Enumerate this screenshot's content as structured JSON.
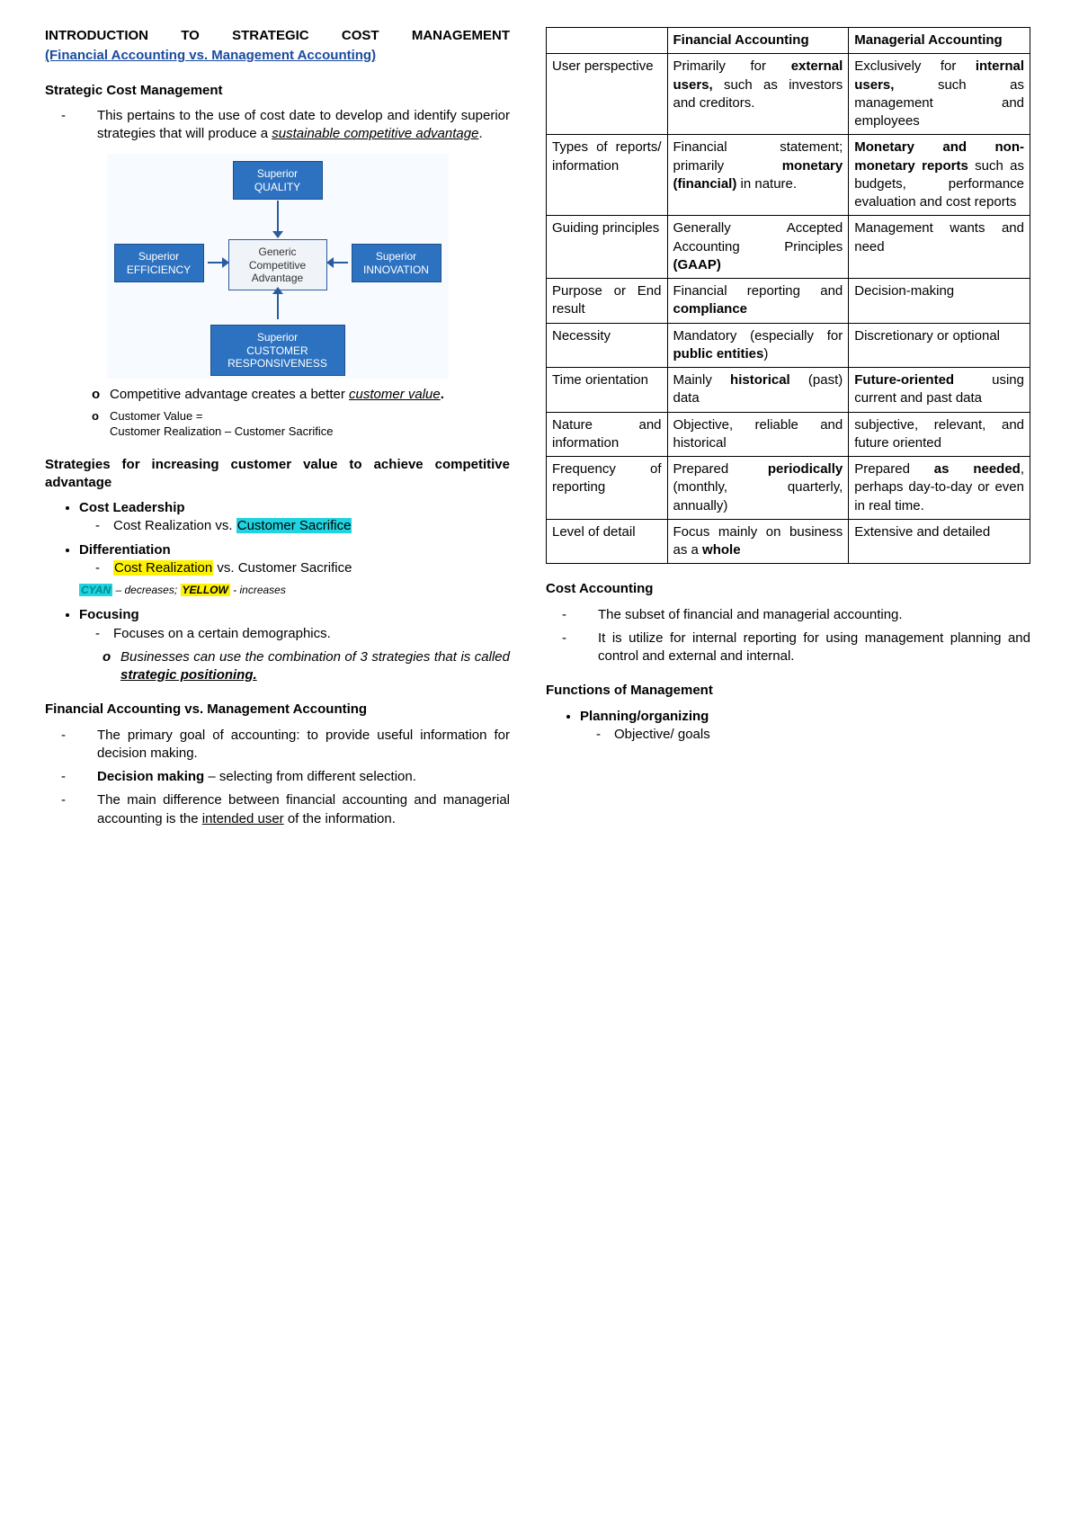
{
  "left": {
    "title": "INTRODUCTION TO STRATEGIC COST MANAGEMENT",
    "subtitle": "(Financial Accounting vs. Management Accounting)",
    "scm_head": "Strategic Cost Management",
    "scm_text_pre": "This pertains to the use of cost date to develop and identify superior strategies that will produce a ",
    "scm_text_u": "sustainable competitive advantage",
    "diagram": {
      "quality": "Superior\nQUALITY",
      "efficiency": "Superior\nEFFICIENCY",
      "center": "Generic\nCompetitive\nAdvantage",
      "innovation": "Superior\nINNOVATION",
      "customer": "Superior\nCUSTOMER\nRESPONSIVENESS",
      "colors": {
        "blue": "#2d72c0",
        "light": "#f0f3f7",
        "border": "#2a5aa0",
        "bg": "#f7fbff"
      }
    },
    "adv1_pre": "Competitive advantage creates a better ",
    "adv1_u": "customer value",
    "cv_label": "Customer Value =",
    "cv_formula": "Customer Realization – Customer Sacrifice",
    "strat_head": "Strategies for increasing customer value to achieve competitive advantage",
    "cost_leadership": "Cost Leadership",
    "cl_text_pre": "Cost Realization vs. ",
    "cl_text_hl": "Customer Sacrifice",
    "differentiation": "Differentiation",
    "diff_text_hl": "Cost Realization",
    "diff_text_post": " vs. Customer Sacrifice",
    "legend_cyan": "CYAN",
    "legend_mid": " – decreases; ",
    "legend_yellow": "YELLOW",
    "legend_end": " - increases",
    "focusing": "Focusing",
    "focus_text": "Focuses on a certain demographics.",
    "focus_sub_pre": "Businesses can use the combination of 3 strategies that is called ",
    "focus_sub_u": "strategic positioning.",
    "fama_head": "Financial Accounting vs. Management Accounting",
    "fama1": "The primary goal of accounting: to provide useful information for decision making.",
    "fama2_b": "Decision making",
    "fama2_rest": " – selecting from different selection.",
    "fama3_pre": "The main difference between financial accounting and managerial accounting is the ",
    "fama3_u": "intended user",
    "fama3_post": " of the information."
  },
  "table": {
    "h1": "Financial Accounting",
    "h2": "Managerial Accounting",
    "rows": [
      {
        "label": "User perspective",
        "fa_parts": [
          "Primarily for ",
          {
            "b": "external users,"
          },
          " such as investors and creditors."
        ],
        "ma_parts": [
          "Exclusively for ",
          {
            "b": "internal users,"
          },
          " such as management and employees"
        ]
      },
      {
        "label": "Types of reports/ information",
        "fa_parts": [
          "Financial statement; primarily ",
          {
            "b": "monetary (financial)"
          },
          " in nature."
        ],
        "ma_parts": [
          {
            "b": "Monetary and non-monetary reports"
          },
          " such as budgets, performance evaluation and cost reports"
        ]
      },
      {
        "label": "Guiding principles",
        "fa_parts": [
          "Generally Accepted Accounting Principles ",
          {
            "b": "(GAAP)"
          }
        ],
        "ma_parts": [
          "Management wants and need"
        ]
      },
      {
        "label": "Purpose or End result",
        "fa_parts": [
          "Financial reporting and ",
          {
            "b": "compliance"
          }
        ],
        "ma_parts": [
          "Decision-making"
        ]
      },
      {
        "label": "Necessity",
        "fa_parts": [
          "Mandatory (especially for ",
          {
            "b": "public entities"
          },
          ")"
        ],
        "ma_parts": [
          "Discretionary or optional"
        ]
      },
      {
        "label": "Time orientation",
        "fa_parts": [
          "Mainly ",
          {
            "b": "historical"
          },
          " (past) data"
        ],
        "ma_parts": [
          {
            "b": "Future-oriented"
          },
          " using current and past data"
        ]
      },
      {
        "label": "Nature and information",
        "fa_parts": [
          "Objective, reliable and historical"
        ],
        "ma_parts": [
          "subjective, relevant, and future oriented"
        ]
      },
      {
        "label": "Frequency of reporting",
        "fa_parts": [
          "Prepared ",
          {
            "b": "periodically"
          },
          " (monthly, quarterly, annually)"
        ],
        "ma_parts": [
          "Prepared ",
          {
            "b": "as needed"
          },
          ", perhaps day-to-day or even in real time."
        ]
      },
      {
        "label": "Level of detail",
        "fa_parts": [
          "Focus mainly on business as a ",
          {
            "b": "whole"
          }
        ],
        "ma_parts": [
          "Extensive and detailed"
        ]
      }
    ]
  },
  "right_bottom": {
    "cost_head": "Cost Accounting",
    "cost1": "The subset of financial and managerial accounting.",
    "cost2": "It is utilize for internal reporting for using management planning and control and external and internal.",
    "func_head": "Functions of Management",
    "planning": "Planning/organizing",
    "planning_sub": "Objective/ goals"
  }
}
